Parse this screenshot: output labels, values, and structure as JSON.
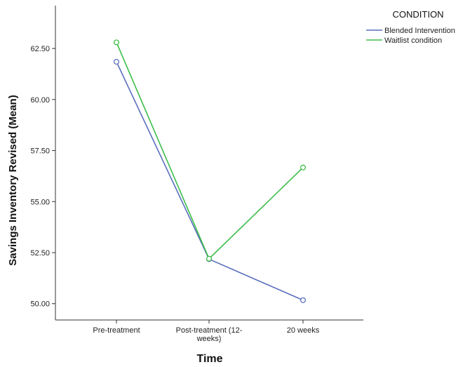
{
  "chart_data": {
    "type": "line",
    "xlabel": "Time",
    "ylabel": "Savings Inventory Revised (Mean)",
    "categories": [
      "Pre-treatment",
      "Post-treatment (12-weeks)",
      "20 weeks"
    ],
    "category_label_lines": [
      [
        "Pre-treatment"
      ],
      [
        "Post-treatment (12-",
        "weeks)"
      ],
      [
        "20 weeks"
      ]
    ],
    "ylim": [
      49.2,
      64.6
    ],
    "yticks": [
      "50.00",
      "52.50",
      "55.00",
      "57.50",
      "60.00",
      "62.50"
    ],
    "grid": false,
    "legend": {
      "title": "CONDITION",
      "placement": "top-right"
    },
    "series": [
      {
        "name": "Blended Intervention",
        "color": "#5a6fbd",
        "values": [
          61.85,
          52.18,
          50.17
        ]
      },
      {
        "name": "Waitlist condition",
        "color": "#3dbd4a",
        "values": [
          62.8,
          52.2,
          56.67
        ]
      }
    ]
  }
}
